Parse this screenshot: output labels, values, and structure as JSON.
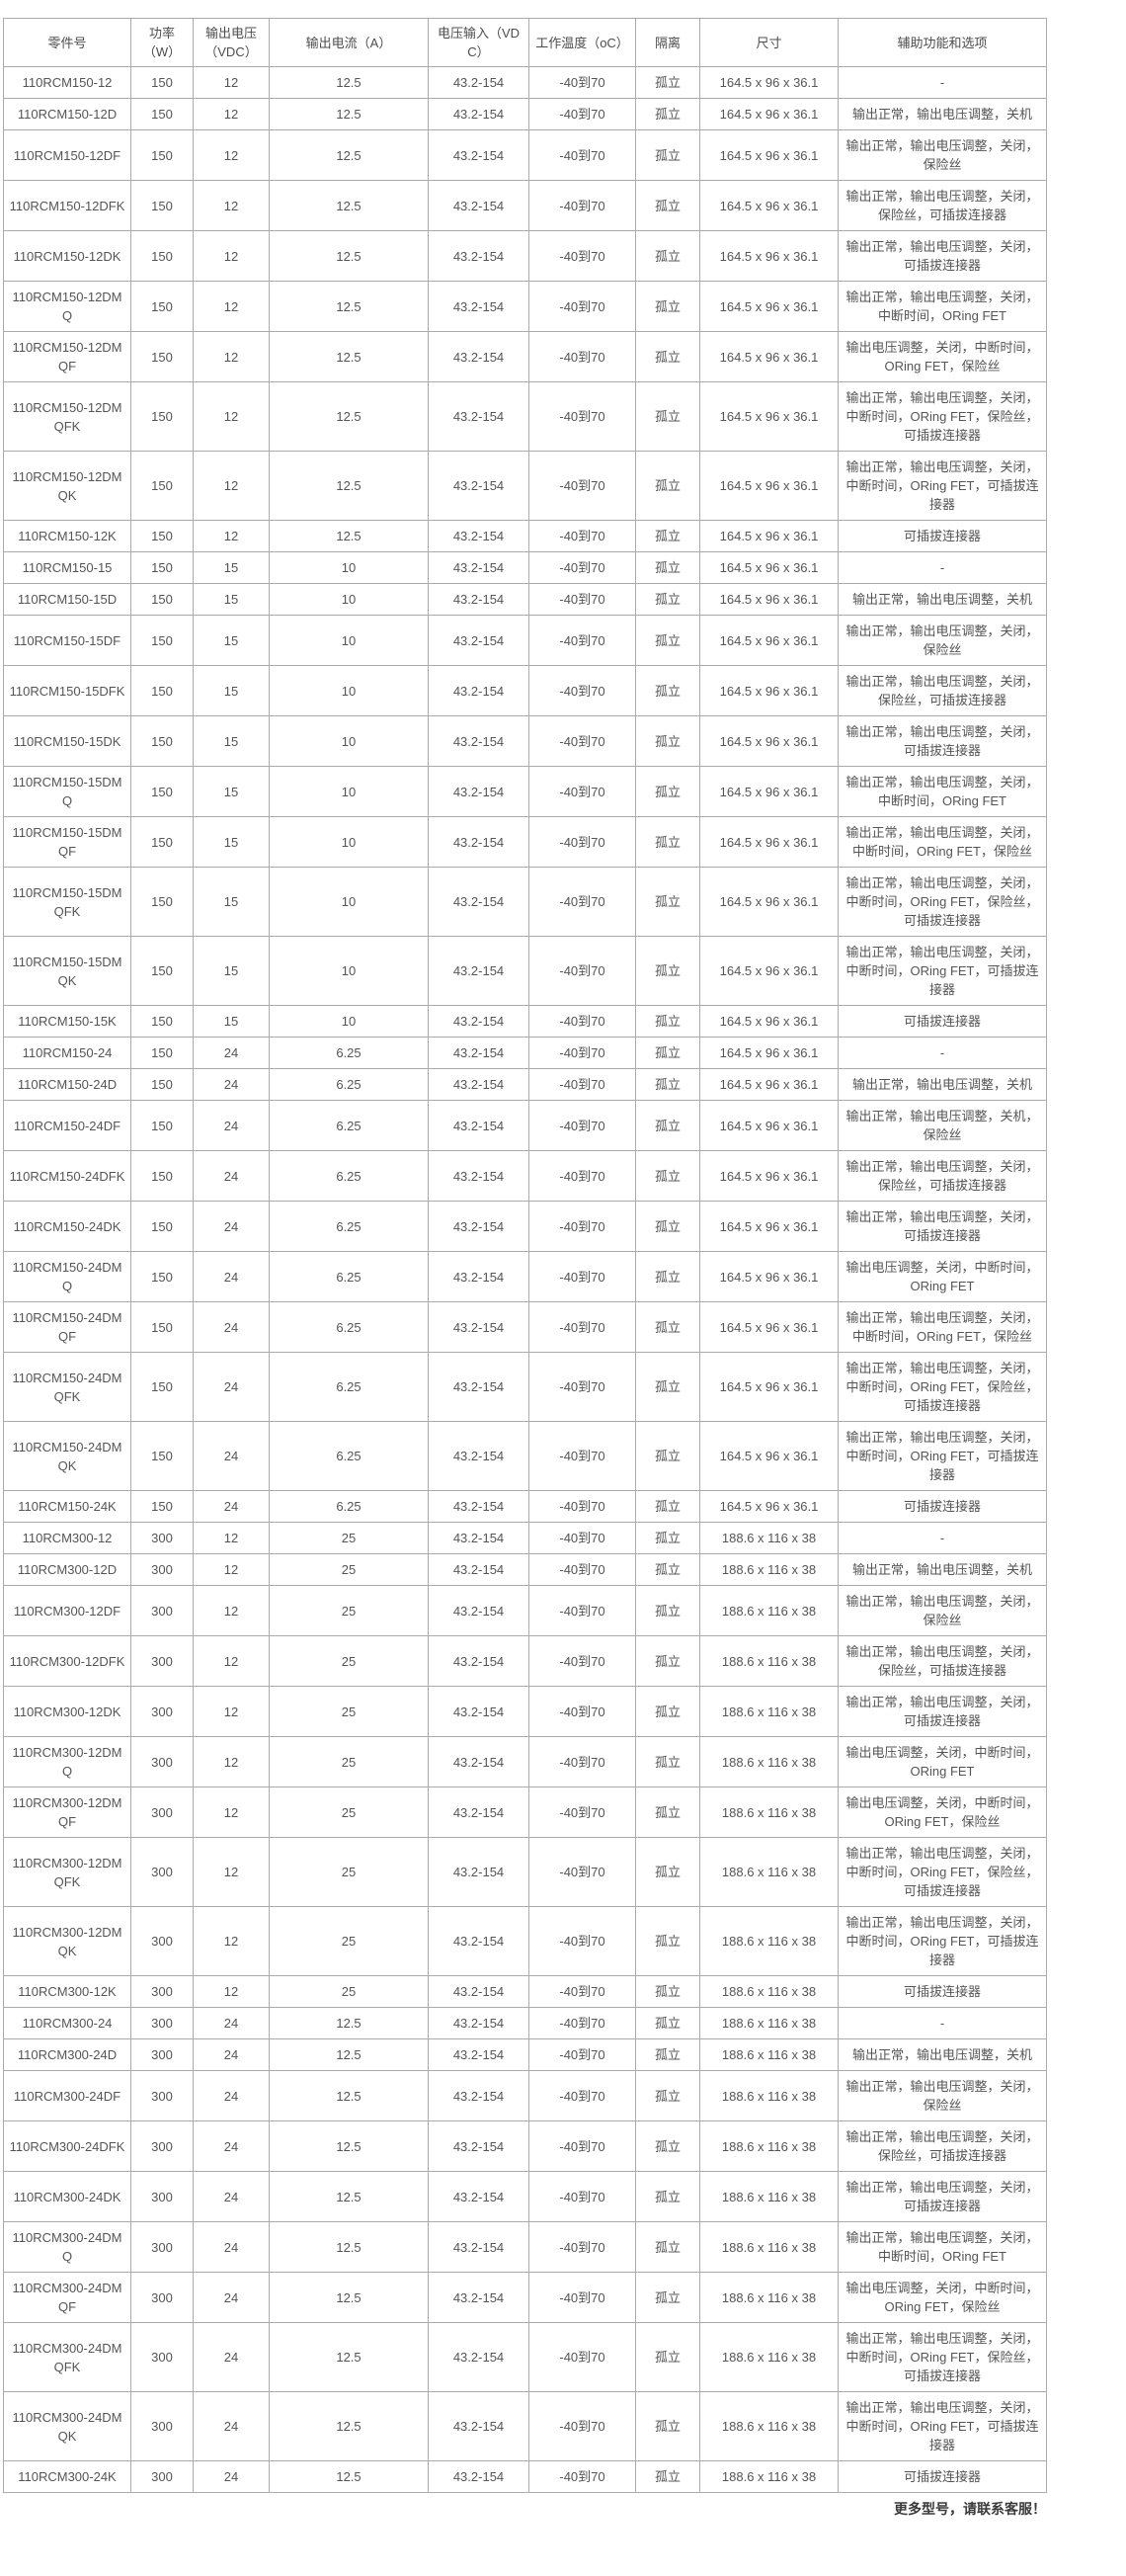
{
  "colors": {
    "text": "#555555",
    "border_inner": "#ababab",
    "border_outer": "#8e8e8e",
    "background": "#ffffff",
    "footer_text": "#3a3a3a"
  },
  "footer": {
    "note": "更多型号，请联系客服！"
  },
  "table": {
    "headers": [
      "零件号",
      "功率（W）",
      "输出电压（VDC）",
      "输出电流（A）",
      "电压输入（VDC）",
      "工作温度（oC）",
      "隔离",
      "尺寸",
      "辅助功能和选项"
    ],
    "rows": [
      [
        "110RCM150-12",
        "150",
        "12",
        "12.5",
        "43.2-154",
        "-40到70",
        "孤立",
        "164.5 x 96 x 36.1",
        "-"
      ],
      [
        "110RCM150-12D",
        "150",
        "12",
        "12.5",
        "43.2-154",
        "-40到70",
        "孤立",
        "164.5 x 96 x 36.1",
        "输出正常，输出电压调整，关机"
      ],
      [
        "110RCM150-12DF",
        "150",
        "12",
        "12.5",
        "43.2-154",
        "-40到70",
        "孤立",
        "164.5 x 96 x 36.1",
        "输出正常，输出电压调整，关闭，保险丝"
      ],
      [
        "110RCM150-12DFK",
        "150",
        "12",
        "12.5",
        "43.2-154",
        "-40到70",
        "孤立",
        "164.5 x 96 x 36.1",
        "输出正常，输出电压调整，关闭，保险丝，可插拔连接器"
      ],
      [
        "110RCM150-12DK",
        "150",
        "12",
        "12.5",
        "43.2-154",
        "-40到70",
        "孤立",
        "164.5 x 96 x 36.1",
        "输出正常，输出电压调整，关闭，可插拔连接器"
      ],
      [
        "110RCM150-12DMQ",
        "150",
        "12",
        "12.5",
        "43.2-154",
        "-40到70",
        "孤立",
        "164.5 x 96 x 36.1",
        "输出正常，输出电压调整，关闭，中断时间，ORing FET"
      ],
      [
        "110RCM150-12DMQF",
        "150",
        "12",
        "12.5",
        "43.2-154",
        "-40到70",
        "孤立",
        "164.5 x 96 x 36.1",
        "输出电压调整，关闭，中断时间，ORing FET，保险丝"
      ],
      [
        "110RCM150-12DMQFK",
        "150",
        "12",
        "12.5",
        "43.2-154",
        "-40到70",
        "孤立",
        "164.5 x 96 x 36.1",
        "输出正常，输出电压调整，关闭，中断时间，ORing FET，保险丝，可插拔连接器"
      ],
      [
        "110RCM150-12DMQK",
        "150",
        "12",
        "12.5",
        "43.2-154",
        "-40到70",
        "孤立",
        "164.5 x 96 x 36.1",
        "输出正常，输出电压调整，关闭，中断时间，ORing FET，可插拔连接器"
      ],
      [
        "110RCM150-12K",
        "150",
        "12",
        "12.5",
        "43.2-154",
        "-40到70",
        "孤立",
        "164.5 x 96 x 36.1",
        "可插拔连接器"
      ],
      [
        "110RCM150-15",
        "150",
        "15",
        "10",
        "43.2-154",
        "-40到70",
        "孤立",
        "164.5 x 96 x 36.1",
        "-"
      ],
      [
        "110RCM150-15D",
        "150",
        "15",
        "10",
        "43.2-154",
        "-40到70",
        "孤立",
        "164.5 x 96 x 36.1",
        "输出正常，输出电压调整，关机"
      ],
      [
        "110RCM150-15DF",
        "150",
        "15",
        "10",
        "43.2-154",
        "-40到70",
        "孤立",
        "164.5 x 96 x 36.1",
        "输出正常，输出电压调整，关闭，保险丝"
      ],
      [
        "110RCM150-15DFK",
        "150",
        "15",
        "10",
        "43.2-154",
        "-40到70",
        "孤立",
        "164.5 x 96 x 36.1",
        "输出正常，输出电压调整，关闭，保险丝，可插拔连接器"
      ],
      [
        "110RCM150-15DK",
        "150",
        "15",
        "10",
        "43.2-154",
        "-40到70",
        "孤立",
        "164.5 x 96 x 36.1",
        "输出正常，输出电压调整，关闭，可插拔连接器"
      ],
      [
        "110RCM150-15DMQ",
        "150",
        "15",
        "10",
        "43.2-154",
        "-40到70",
        "孤立",
        "164.5 x 96 x 36.1",
        "输出正常，输出电压调整，关闭，中断时间，ORing FET"
      ],
      [
        "110RCM150-15DMQF",
        "150",
        "15",
        "10",
        "43.2-154",
        "-40到70",
        "孤立",
        "164.5 x 96 x 36.1",
        "输出正常，输出电压调整，关闭，中断时间，ORing FET，保险丝"
      ],
      [
        "110RCM150-15DMQFK",
        "150",
        "15",
        "10",
        "43.2-154",
        "-40到70",
        "孤立",
        "164.5 x 96 x 36.1",
        "输出正常，输出电压调整，关闭，中断时间，ORing FET，保险丝，可插拔连接器"
      ],
      [
        "110RCM150-15DMQK",
        "150",
        "15",
        "10",
        "43.2-154",
        "-40到70",
        "孤立",
        "164.5 x 96 x 36.1",
        "输出正常，输出电压调整，关闭，中断时间，ORing FET，可插拔连接器"
      ],
      [
        "110RCM150-15K",
        "150",
        "15",
        "10",
        "43.2-154",
        "-40到70",
        "孤立",
        "164.5 x 96 x 36.1",
        "可插拔连接器"
      ],
      [
        "110RCM150-24",
        "150",
        "24",
        "6.25",
        "43.2-154",
        "-40到70",
        "孤立",
        "164.5 x 96 x 36.1",
        "-"
      ],
      [
        "110RCM150-24D",
        "150",
        "24",
        "6.25",
        "43.2-154",
        "-40到70",
        "孤立",
        "164.5 x 96 x 36.1",
        "输出正常，输出电压调整，关机"
      ],
      [
        "110RCM150-24DF",
        "150",
        "24",
        "6.25",
        "43.2-154",
        "-40到70",
        "孤立",
        "164.5 x 96 x 36.1",
        "输出正常，输出电压调整，关机，保险丝"
      ],
      [
        "110RCM150-24DFK",
        "150",
        "24",
        "6.25",
        "43.2-154",
        "-40到70",
        "孤立",
        "164.5 x 96 x 36.1",
        "输出正常，输出电压调整，关闭，保险丝，可插拔连接器"
      ],
      [
        "110RCM150-24DK",
        "150",
        "24",
        "6.25",
        "43.2-154",
        "-40到70",
        "孤立",
        "164.5 x 96 x 36.1",
        "输出正常，输出电压调整，关闭，可插拔连接器"
      ],
      [
        "110RCM150-24DMQ",
        "150",
        "24",
        "6.25",
        "43.2-154",
        "-40到70",
        "孤立",
        "164.5 x 96 x 36.1",
        "输出电压调整，关闭，中断时间，ORing FET"
      ],
      [
        "110RCM150-24DMQF",
        "150",
        "24",
        "6.25",
        "43.2-154",
        "-40到70",
        "孤立",
        "164.5 x 96 x 36.1",
        "输出正常，输出电压调整，关闭，中断时间，ORing FET，保险丝"
      ],
      [
        "110RCM150-24DMQFK",
        "150",
        "24",
        "6.25",
        "43.2-154",
        "-40到70",
        "孤立",
        "164.5 x 96 x 36.1",
        "输出正常，输出电压调整，关闭，中断时间，ORing FET，保险丝，可插拔连接器"
      ],
      [
        "110RCM150-24DMQK",
        "150",
        "24",
        "6.25",
        "43.2-154",
        "-40到70",
        "孤立",
        "164.5 x 96 x 36.1",
        "输出正常，输出电压调整，关闭，中断时间，ORing FET，可插拔连接器"
      ],
      [
        "110RCM150-24K",
        "150",
        "24",
        "6.25",
        "43.2-154",
        "-40到70",
        "孤立",
        "164.5 x 96 x 36.1",
        "可插拔连接器"
      ],
      [
        "110RCM300-12",
        "300",
        "12",
        "25",
        "43.2-154",
        "-40到70",
        "孤立",
        "188.6 x 116 x 38",
        "-"
      ],
      [
        "110RCM300-12D",
        "300",
        "12",
        "25",
        "43.2-154",
        "-40到70",
        "孤立",
        "188.6 x 116 x 38",
        "输出正常，输出电压调整，关机"
      ],
      [
        "110RCM300-12DF",
        "300",
        "12",
        "25",
        "43.2-154",
        "-40到70",
        "孤立",
        "188.6 x 116 x 38",
        "输出正常，输出电压调整，关闭，保险丝"
      ],
      [
        "110RCM300-12DFK",
        "300",
        "12",
        "25",
        "43.2-154",
        "-40到70",
        "孤立",
        "188.6 x 116 x 38",
        "输出正常，输出电压调整，关闭，保险丝，可插拔连接器"
      ],
      [
        "110RCM300-12DK",
        "300",
        "12",
        "25",
        "43.2-154",
        "-40到70",
        "孤立",
        "188.6 x 116 x 38",
        "输出正常，输出电压调整，关闭，可插拔连接器"
      ],
      [
        "110RCM300-12DMQ",
        "300",
        "12",
        "25",
        "43.2-154",
        "-40到70",
        "孤立",
        "188.6 x 116 x 38",
        "输出电压调整，关闭，中断时间，ORing FET"
      ],
      [
        "110RCM300-12DMQF",
        "300",
        "12",
        "25",
        "43.2-154",
        "-40到70",
        "孤立",
        "188.6 x 116 x 38",
        "输出电压调整，关闭，中断时间，ORing FET，保险丝"
      ],
      [
        "110RCM300-12DMQFK",
        "300",
        "12",
        "25",
        "43.2-154",
        "-40到70",
        "孤立",
        "188.6 x 116 x 38",
        "输出正常，输出电压调整，关闭，中断时间，ORing FET，保险丝，可插拔连接器"
      ],
      [
        "110RCM300-12DMQK",
        "300",
        "12",
        "25",
        "43.2-154",
        "-40到70",
        "孤立",
        "188.6 x 116 x 38",
        "输出正常，输出电压调整，关闭，中断时间，ORing FET，可插拔连接器"
      ],
      [
        "110RCM300-12K",
        "300",
        "12",
        "25",
        "43.2-154",
        "-40到70",
        "孤立",
        "188.6 x 116 x 38",
        "可插拔连接器"
      ],
      [
        "110RCM300-24",
        "300",
        "24",
        "12.5",
        "43.2-154",
        "-40到70",
        "孤立",
        "188.6 x 116 x 38",
        "-"
      ],
      [
        "110RCM300-24D",
        "300",
        "24",
        "12.5",
        "43.2-154",
        "-40到70",
        "孤立",
        "188.6 x 116 x 38",
        "输出正常，输出电压调整，关机"
      ],
      [
        "110RCM300-24DF",
        "300",
        "24",
        "12.5",
        "43.2-154",
        "-40到70",
        "孤立",
        "188.6 x 116 x 38",
        "输出正常，输出电压调整，关闭，保险丝"
      ],
      [
        "110RCM300-24DFK",
        "300",
        "24",
        "12.5",
        "43.2-154",
        "-40到70",
        "孤立",
        "188.6 x 116 x 38",
        "输出正常，输出电压调整，关闭，保险丝，可插拔连接器"
      ],
      [
        "110RCM300-24DK",
        "300",
        "24",
        "12.5",
        "43.2-154",
        "-40到70",
        "孤立",
        "188.6 x 116 x 38",
        "输出正常，输出电压调整，关闭，可插拔连接器"
      ],
      [
        "110RCM300-24DMQ",
        "300",
        "24",
        "12.5",
        "43.2-154",
        "-40到70",
        "孤立",
        "188.6 x 116 x 38",
        "输出正常，输出电压调整，关闭，中断时间，ORing FET"
      ],
      [
        "110RCM300-24DMQF",
        "300",
        "24",
        "12.5",
        "43.2-154",
        "-40到70",
        "孤立",
        "188.6 x 116 x 38",
        "输出电压调整，关闭，中断时间，ORing FET，保险丝"
      ],
      [
        "110RCM300-24DMQFK",
        "300",
        "24",
        "12.5",
        "43.2-154",
        "-40到70",
        "孤立",
        "188.6 x 116 x 38",
        "输出正常，输出电压调整，关闭，中断时间，ORing FET，保险丝，可插拔连接器"
      ],
      [
        "110RCM300-24DMQK",
        "300",
        "24",
        "12.5",
        "43.2-154",
        "-40到70",
        "孤立",
        "188.6 x 116 x 38",
        "输出正常，输出电压调整，关闭，中断时间，ORing FET，可插拔连接器"
      ],
      [
        "110RCM300-24K",
        "300",
        "24",
        "12.5",
        "43.2-154",
        "-40到70",
        "孤立",
        "188.6 x 116 x 38",
        "可插拔连接器"
      ]
    ]
  }
}
